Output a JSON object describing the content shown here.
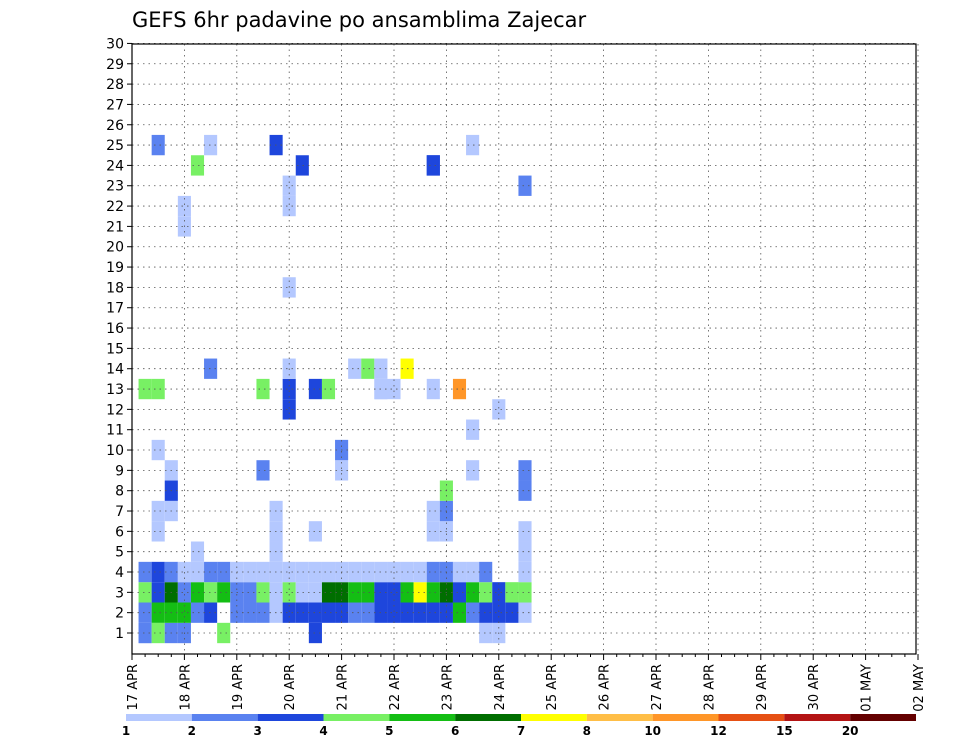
{
  "chart_data": {
    "type": "heatmap",
    "title": "GEFS 6hr padavine po ansamblima Zajecar",
    "xlabel": "",
    "ylabel": "",
    "x_tick_labels": [
      "17 APR",
      "18 APR",
      "19 APR",
      "20 APR",
      "21 APR",
      "22 APR",
      "23 APR",
      "24 APR",
      "25 APR",
      "26 APR",
      "27 APR",
      "28 APR",
      "29 APR",
      "30 APR",
      "01 MAY",
      "02 MAY"
    ],
    "y_tick_labels": [
      "1",
      "2",
      "3",
      "4",
      "5",
      "6",
      "7",
      "8",
      "9",
      "10",
      "11",
      "12",
      "13",
      "14",
      "15",
      "16",
      "17",
      "18",
      "19",
      "20",
      "21",
      "22",
      "23",
      "24",
      "25",
      "26",
      "27",
      "28",
      "29",
      "30"
    ],
    "n_columns": 61,
    "n_members": 30,
    "color_scale": {
      "levels": [
        "1",
        "2",
        "3",
        "4",
        "5",
        "6",
        "7",
        "8",
        "10",
        "12",
        "15",
        "20"
      ],
      "colors": [
        "#b4c8ff",
        "#5a82f0",
        "#1e46dc",
        "#78f064",
        "#14be14",
        "#006e00",
        "#ffff00",
        "#ffbe46",
        "#ff9628",
        "#e65014",
        "#b41414",
        "#640000"
      ]
    },
    "cells": [
      [
        1,
        1,
        0
      ],
      [
        1,
        1,
        1
      ],
      [
        1,
        2,
        3
      ],
      [
        1,
        3,
        1
      ],
      [
        1,
        4,
        1
      ],
      [
        1,
        7,
        3
      ],
      [
        1,
        14,
        2
      ],
      [
        1,
        27,
        0
      ],
      [
        1,
        28,
        0
      ],
      [
        2,
        1,
        1
      ],
      [
        2,
        2,
        4
      ],
      [
        2,
        3,
        4
      ],
      [
        2,
        4,
        4
      ],
      [
        2,
        5,
        1
      ],
      [
        2,
        6,
        2
      ],
      [
        2,
        8,
        1
      ],
      [
        2,
        9,
        1
      ],
      [
        2,
        10,
        1
      ],
      [
        2,
        11,
        0
      ],
      [
        2,
        12,
        2
      ],
      [
        2,
        13,
        2
      ],
      [
        2,
        14,
        2
      ],
      [
        2,
        15,
        2
      ],
      [
        2,
        16,
        2
      ],
      [
        2,
        17,
        1
      ],
      [
        2,
        18,
        1
      ],
      [
        2,
        19,
        2
      ],
      [
        2,
        20,
        2
      ],
      [
        2,
        21,
        2
      ],
      [
        2,
        22,
        2
      ],
      [
        2,
        23,
        2
      ],
      [
        2,
        24,
        2
      ],
      [
        2,
        25,
        4
      ],
      [
        2,
        26,
        1
      ],
      [
        2,
        27,
        2
      ],
      [
        2,
        28,
        2
      ],
      [
        2,
        29,
        2
      ],
      [
        2,
        30,
        0
      ],
      [
        3,
        1,
        3
      ],
      [
        3,
        2,
        2
      ],
      [
        3,
        3,
        5
      ],
      [
        3,
        4,
        1
      ],
      [
        3,
        5,
        4
      ],
      [
        3,
        6,
        3
      ],
      [
        3,
        7,
        4
      ],
      [
        3,
        8,
        1
      ],
      [
        3,
        9,
        1
      ],
      [
        3,
        10,
        3
      ],
      [
        3,
        11,
        0
      ],
      [
        3,
        12,
        3
      ],
      [
        3,
        13,
        0
      ],
      [
        3,
        14,
        0
      ],
      [
        3,
        15,
        5
      ],
      [
        3,
        16,
        5
      ],
      [
        3,
        17,
        4
      ],
      [
        3,
        18,
        4
      ],
      [
        3,
        19,
        2
      ],
      [
        3,
        20,
        2
      ],
      [
        3,
        21,
        4
      ],
      [
        3,
        22,
        6
      ],
      [
        3,
        23,
        4
      ],
      [
        3,
        24,
        5
      ],
      [
        3,
        25,
        2
      ],
      [
        3,
        26,
        4
      ],
      [
        3,
        27,
        3
      ],
      [
        3,
        28,
        2
      ],
      [
        3,
        29,
        3
      ],
      [
        3,
        30,
        3
      ],
      [
        4,
        1,
        1
      ],
      [
        4,
        2,
        2
      ],
      [
        4,
        3,
        1
      ],
      [
        4,
        4,
        0
      ],
      [
        4,
        5,
        0
      ],
      [
        4,
        6,
        1
      ],
      [
        4,
        7,
        1
      ],
      [
        4,
        8,
        0
      ],
      [
        4,
        9,
        0
      ],
      [
        4,
        10,
        0
      ],
      [
        4,
        11,
        0
      ],
      [
        4,
        12,
        0
      ],
      [
        4,
        13,
        0
      ],
      [
        4,
        14,
        0
      ],
      [
        4,
        15,
        0
      ],
      [
        4,
        16,
        0
      ],
      [
        4,
        17,
        0
      ],
      [
        4,
        18,
        0
      ],
      [
        4,
        19,
        0
      ],
      [
        4,
        20,
        0
      ],
      [
        4,
        21,
        0
      ],
      [
        4,
        22,
        0
      ],
      [
        4,
        23,
        1
      ],
      [
        4,
        24,
        1
      ],
      [
        4,
        25,
        0
      ],
      [
        4,
        26,
        0
      ],
      [
        4,
        27,
        1
      ],
      [
        4,
        30,
        0
      ],
      [
        5,
        5,
        0
      ],
      [
        5,
        11,
        0
      ],
      [
        5,
        30,
        0
      ],
      [
        6,
        2,
        0
      ],
      [
        6,
        11,
        0
      ],
      [
        6,
        14,
        0
      ],
      [
        6,
        23,
        0
      ],
      [
        6,
        24,
        0
      ],
      [
        6,
        30,
        0
      ],
      [
        7,
        2,
        0
      ],
      [
        7,
        3,
        0
      ],
      [
        7,
        11,
        0
      ],
      [
        7,
        23,
        0
      ],
      [
        7,
        24,
        1
      ],
      [
        8,
        3,
        2
      ],
      [
        8,
        24,
        3
      ],
      [
        8,
        30,
        1
      ],
      [
        9,
        3,
        0
      ],
      [
        9,
        10,
        1
      ],
      [
        9,
        16,
        0
      ],
      [
        9,
        26,
        0
      ],
      [
        9,
        30,
        1
      ],
      [
        10,
        2,
        0
      ],
      [
        10,
        16,
        1
      ],
      [
        11,
        26,
        0
      ],
      [
        12,
        12,
        2
      ],
      [
        12,
        28,
        0
      ],
      [
        13,
        1,
        3
      ],
      [
        13,
        2,
        3
      ],
      [
        13,
        10,
        3
      ],
      [
        13,
        12,
        2
      ],
      [
        13,
        14,
        2
      ],
      [
        13,
        15,
        3
      ],
      [
        13,
        19,
        0
      ],
      [
        13,
        19,
        0
      ],
      [
        13,
        20,
        0
      ],
      [
        13,
        23,
        0
      ],
      [
        13,
        25,
        8
      ],
      [
        14,
        6,
        1
      ],
      [
        14,
        12,
        0
      ],
      [
        14,
        17,
        0
      ],
      [
        14,
        18,
        3
      ],
      [
        14,
        19,
        0
      ],
      [
        14,
        21,
        6
      ],
      [
        18,
        12,
        0
      ],
      [
        21,
        4,
        0
      ],
      [
        22,
        4,
        0
      ],
      [
        22,
        12,
        0
      ],
      [
        23,
        12,
        0
      ],
      [
        23,
        30,
        1
      ],
      [
        24,
        5,
        3
      ],
      [
        24,
        23,
        2
      ],
      [
        24,
        13,
        2
      ],
      [
        24,
        23,
        2
      ],
      [
        25,
        6,
        0
      ],
      [
        25,
        11,
        2
      ],
      [
        25,
        2,
        1
      ],
      [
        25,
        26,
        0
      ]
    ]
  }
}
